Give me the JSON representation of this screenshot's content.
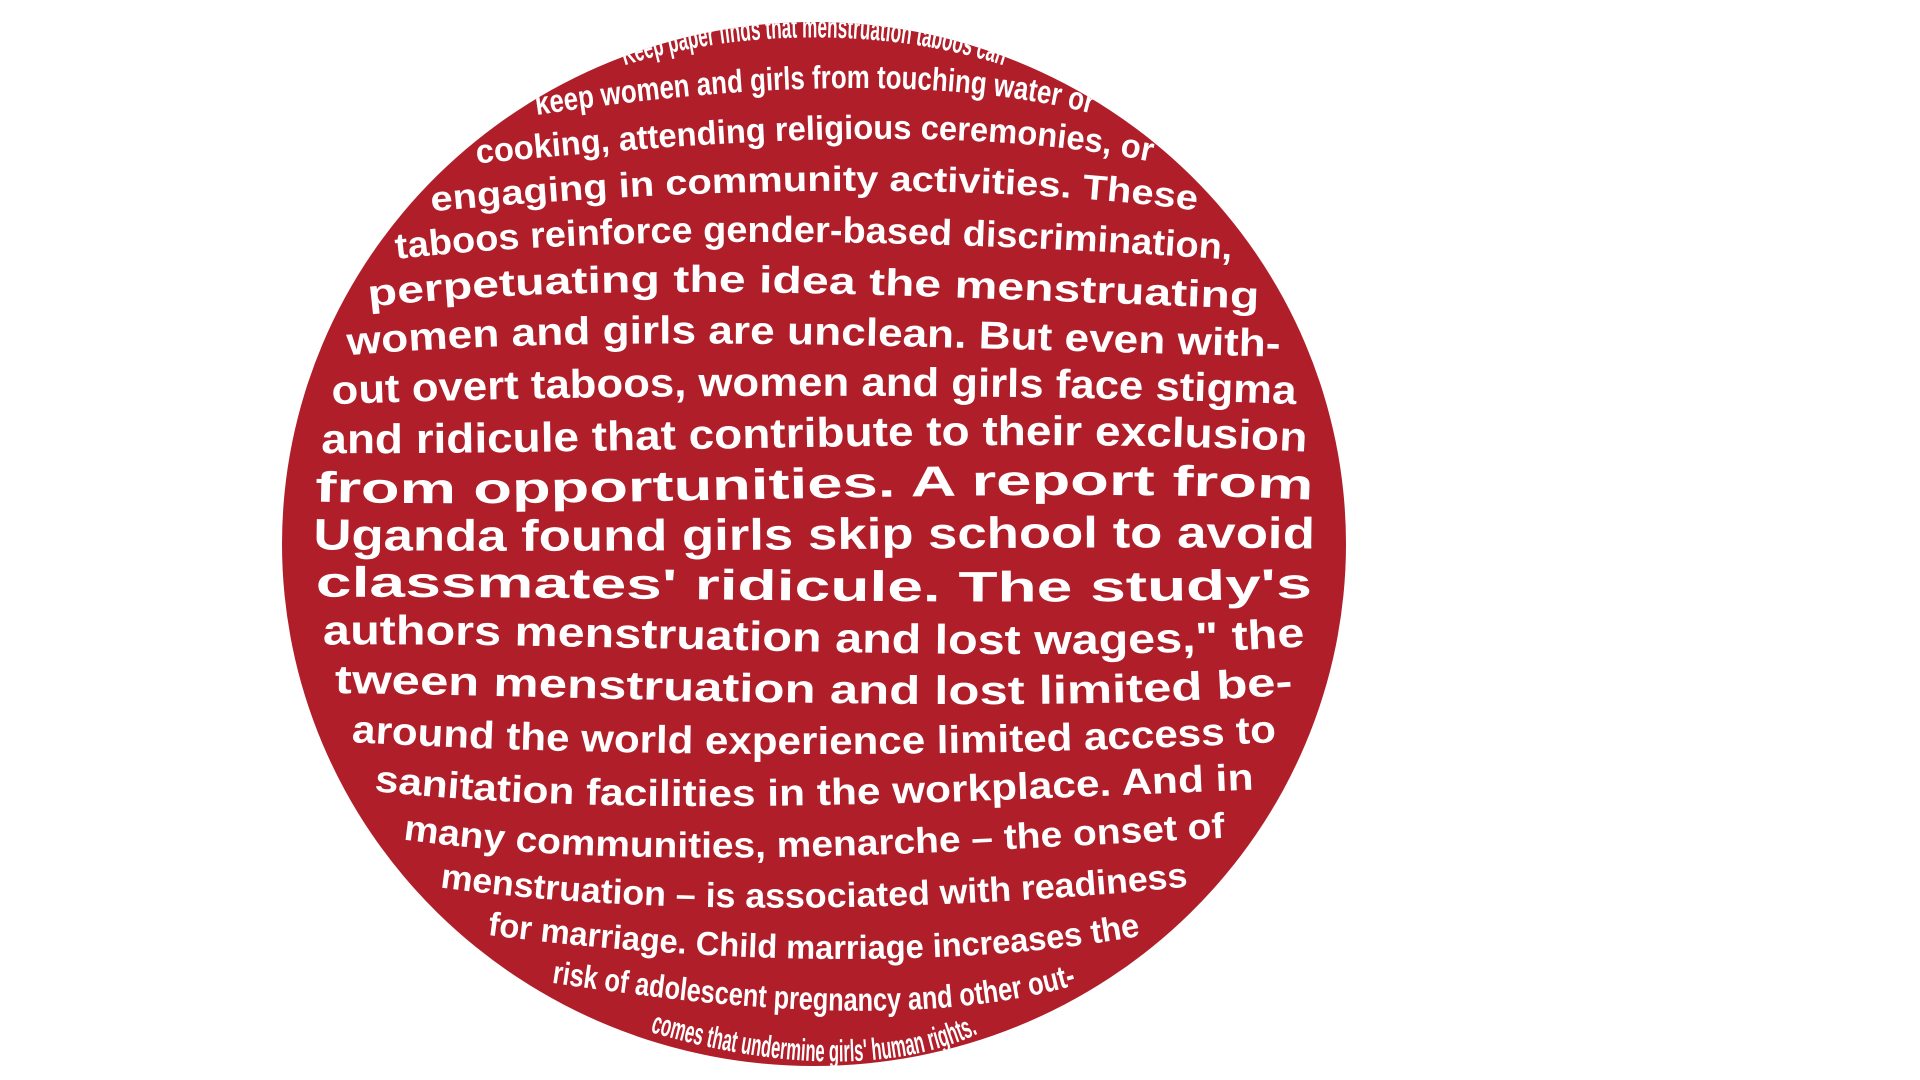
{
  "colors": {
    "background": "#ffffff",
    "sphere_fill": "#b01e2a",
    "text": "#ffffff"
  },
  "text_lines": [
    "Keep paper finds that menstruation taboos can",
    "keep women and girls from touching water or",
    "cooking, attending religious ceremonies, or",
    "engaging in community activities. These",
    "taboos reinforce gender-based discrimination,",
    "perpetuating the idea the menstruating",
    "women and girls are unclean. But even with-",
    "out overt taboos, women and girls face stigma",
    "and ridicule that contribute to their exclusion",
    "from opportunities. A report from",
    "Uganda found girls skip school to avoid",
    "classmates' ridicule. The study's",
    "authors menstruation and lost wages,\" the",
    "tween menstruation and lost limited be-",
    "around the world experience limited access to",
    "sanitation facilities in the workplace. And in",
    "many communities, menarche – the onset of",
    "menstruation – is associated with readiness",
    "for marriage. Child marriage increases the",
    "risk of adolescent pregnancy and other out-",
    "comes that undermine girls' human rights."
  ]
}
